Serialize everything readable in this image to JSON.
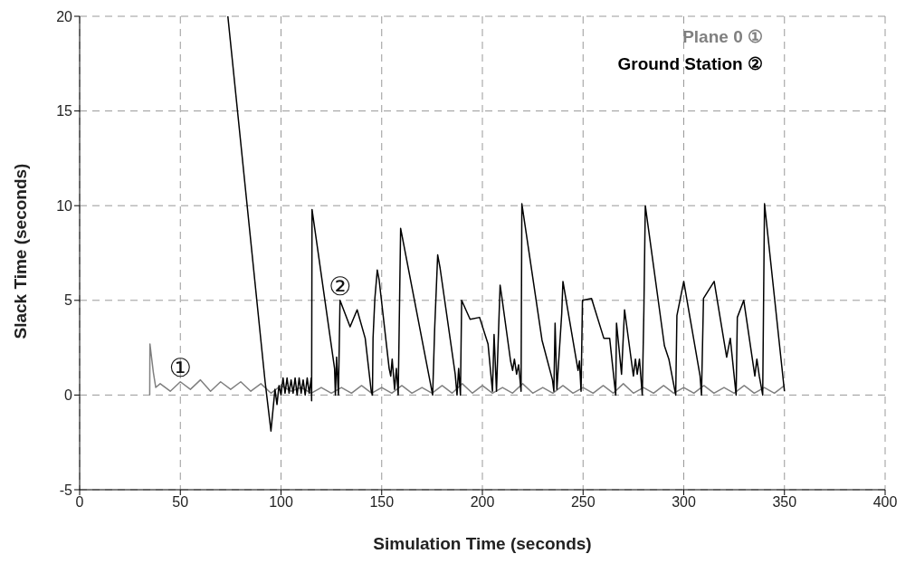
{
  "chart_data": {
    "type": "line",
    "xlabel": "Simulation Time (seconds)",
    "ylabel": "Slack Time (seconds)",
    "xlim": [
      0,
      400
    ],
    "ylim": [
      -5,
      20
    ],
    "xticks": [
      0,
      50,
      100,
      150,
      200,
      250,
      300,
      350,
      400
    ],
    "yticks": [
      -5,
      0,
      5,
      10,
      15,
      20
    ],
    "grid": true,
    "legend": "top right",
    "marker": "none",
    "line_style": "solid",
    "series": [
      {
        "name": "Plane 0 ①",
        "color": "#808080",
        "x": [
          34.8,
          34.9,
          36.6,
          37.8,
          40,
          45,
          50,
          55,
          60,
          65,
          70,
          75,
          80,
          85,
          90,
          95,
          100,
          105,
          110,
          115,
          120,
          125,
          130,
          135,
          140,
          145,
          150,
          155,
          160,
          165,
          170,
          175,
          180,
          185,
          190,
          195,
          200,
          205,
          210,
          215,
          220,
          225,
          230,
          235,
          240,
          245,
          250,
          255,
          260,
          265,
          270,
          275,
          280,
          285,
          290,
          295,
          300,
          305,
          310,
          315,
          320,
          325,
          330,
          335,
          340,
          345,
          350
        ],
        "values": [
          0,
          2.7,
          1.2,
          0.4,
          0.6,
          0.2,
          0.7,
          0.3,
          0.8,
          0.2,
          0.7,
          0.3,
          0.7,
          0.2,
          0.6,
          0.1,
          0.5,
          0.2,
          0.4,
          0.1,
          0.4,
          0.1,
          0.4,
          0.1,
          0.5,
          0.1,
          0.4,
          0.1,
          0.5,
          0.1,
          0.4,
          0.1,
          0.5,
          0.1,
          0.6,
          0.1,
          0.5,
          0.1,
          0.4,
          0.1,
          0.6,
          0.1,
          0.4,
          0.1,
          0.5,
          0.1,
          0.4,
          0.1,
          0.5,
          0.1,
          0.6,
          0.1,
          0.4,
          0.1,
          0.5,
          0.1,
          0.4,
          0.1,
          0.5,
          0.1,
          0.4,
          0.1,
          0.5,
          0.1,
          0.4,
          0.1,
          0.5
        ]
      },
      {
        "name": "Ground Station ②",
        "color": "#000000",
        "x": [
          73.6,
          92.1,
          95,
          96,
          97,
          98,
          99,
          100,
          101,
          102,
          103,
          104,
          105,
          106,
          107,
          108,
          109,
          110,
          111,
          112,
          113,
          114,
          115,
          115.2,
          115.4,
          126.6,
          127,
          127.6,
          128.5,
          129.3,
          134.3,
          137.8,
          141.8,
          144.8,
          145.4,
          145.7,
          146.6,
          147.8,
          148.7,
          153.7,
          154.5,
          155.2,
          156.4,
          157.3,
          158.2,
          159.4,
          175.3,
          176.3,
          177.8,
          179,
          186.5,
          187.4,
          188.2,
          189.1,
          189.7,
          193.9,
          198.6,
          202.8,
          205,
          205.8,
          207,
          208.8,
          209.5,
          214,
          215,
          215.9,
          217,
          218,
          219.2,
          219.6,
          229.6,
          234.8,
          235.5,
          236.1,
          237,
          239.4,
          240,
          247.5,
          248.2,
          249,
          249.7,
          254.2,
          260.3,
          263.2,
          266.2,
          266.6,
          269.1,
          270.6,
          275,
          276,
          276.9,
          278,
          279.4,
          280.2,
          280.9,
          290.4,
          292.6,
          296,
          296.6,
          300,
          308.1,
          308.8,
          309.8,
          315.1,
          321.3,
          323.1,
          326,
          326.6,
          329.8,
          335.3,
          336.3,
          337.5,
          339.2,
          340.1,
          350
        ],
        "values": [
          20,
          0.7,
          -1.9,
          -0.8,
          0.3,
          -0.5,
          0.5,
          0,
          0.9,
          0.1,
          0.9,
          0.1,
          0.8,
          0.1,
          0.9,
          0,
          0.9,
          0.1,
          0.8,
          0,
          0.9,
          0.1,
          0.9,
          -0.3,
          9.8,
          1.4,
          0,
          2,
          0,
          5,
          3.6,
          4.5,
          3,
          0.2,
          0,
          3,
          5.1,
          6.6,
          6.1,
          1.4,
          1,
          1.9,
          0.3,
          1.4,
          0,
          8.8,
          0,
          3.5,
          7.4,
          6.7,
          1.1,
          0,
          1.4,
          0,
          5,
          4,
          4.1,
          2.7,
          0.2,
          3.2,
          0.2,
          5.8,
          5.3,
          1.8,
          1.3,
          1.9,
          1.1,
          1.6,
          0.2,
          10.1,
          2.9,
          0.8,
          0.2,
          3.8,
          0.3,
          4.3,
          6,
          1.3,
          1.8,
          0.2,
          5,
          5.1,
          3,
          3,
          0,
          3.8,
          1.1,
          4.5,
          1,
          1.9,
          1.1,
          1.9,
          0,
          4.5,
          10,
          2.6,
          1.9,
          0,
          4.2,
          6,
          1,
          0,
          5.1,
          6,
          2,
          3,
          0,
          4.1,
          5,
          1,
          1.9,
          1,
          0,
          10.1,
          0.2
        ]
      }
    ],
    "annotations": [
      {
        "text": "①",
        "x": 50,
        "y": 0.7
      },
      {
        "text": "②",
        "x": 129.3,
        "y": 5
      }
    ]
  }
}
